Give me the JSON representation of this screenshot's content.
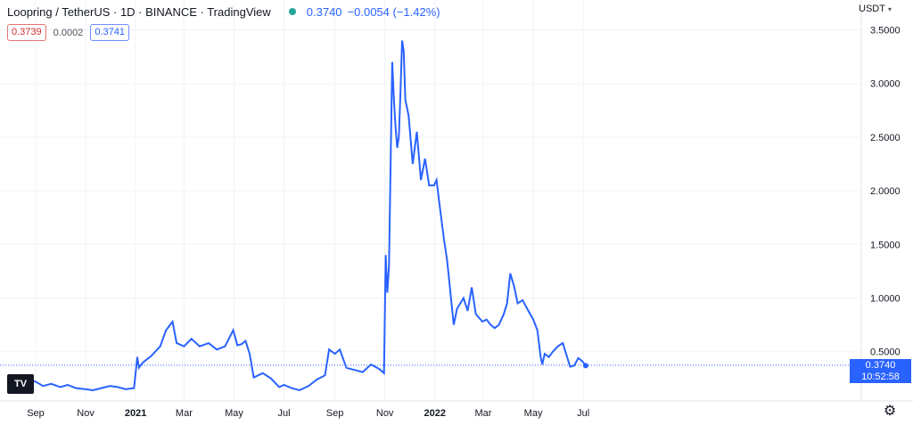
{
  "header": {
    "title": "Loopring / TetherUS · 1D · BINANCE · TradingView",
    "last_price": "0.3740",
    "change": "−0.0054 (−1.42%)",
    "status_color": "#26a69a"
  },
  "ohlc": {
    "bid": "0.3739",
    "spread": "0.0002",
    "ask": "0.3741"
  },
  "price_axis": {
    "unit_label": "USDT",
    "current_price": "0.3740",
    "countdown": "10:52:58"
  },
  "logo_text": "TV",
  "icons": {
    "settings": "gear-icon",
    "dropdown": "chevron-down-icon"
  },
  "colors": {
    "line": "#2962ff",
    "grid": "#f0f3fa",
    "axis_text": "#131722",
    "price_line": "#2962ff"
  },
  "chart_data": {
    "type": "line",
    "title": "Loopring / TetherUS · 1D · BINANCE",
    "xlabel": "",
    "ylabel": "",
    "ylim": [
      0,
      3.6
    ],
    "grid": true,
    "y_ticks": [
      "0.5000",
      "1.0000",
      "1.5000",
      "2.0000",
      "2.5000",
      "3.0000",
      "3.5000"
    ],
    "x_tick_labels": [
      {
        "date": "2020-09-01",
        "label": "Sep"
      },
      {
        "date": "2020-11-01",
        "label": "Nov"
      },
      {
        "date": "2021-01-01",
        "label": "2021"
      },
      {
        "date": "2021-03-01",
        "label": "Mar"
      },
      {
        "date": "2021-05-01",
        "label": "May"
      },
      {
        "date": "2021-07-01",
        "label": "Jul"
      },
      {
        "date": "2021-09-01",
        "label": "Sep"
      },
      {
        "date": "2021-11-01",
        "label": "Nov"
      },
      {
        "date": "2022-01-01",
        "label": "2022"
      },
      {
        "date": "2022-03-01",
        "label": "Mar"
      },
      {
        "date": "2022-05-01",
        "label": "May"
      },
      {
        "date": "2022-07-01",
        "label": "Jul"
      }
    ],
    "series": [
      {
        "values": [
          [
            "2020-08-01",
            0.15
          ],
          [
            "2020-08-10",
            0.22
          ],
          [
            "2020-08-20",
            0.25
          ],
          [
            "2020-09-01",
            0.22
          ],
          [
            "2020-09-10",
            0.18
          ],
          [
            "2020-09-20",
            0.2
          ],
          [
            "2020-10-01",
            0.17
          ],
          [
            "2020-10-10",
            0.19
          ],
          [
            "2020-10-20",
            0.16
          ],
          [
            "2020-10-31",
            0.15
          ],
          [
            "2020-11-10",
            0.14
          ],
          [
            "2020-11-20",
            0.16
          ],
          [
            "2020-12-01",
            0.18
          ],
          [
            "2020-12-10",
            0.17
          ],
          [
            "2020-12-20",
            0.15
          ],
          [
            "2020-12-30",
            0.16
          ],
          [
            "2021-01-03",
            0.45
          ],
          [
            "2021-01-05",
            0.35
          ],
          [
            "2021-01-10",
            0.4
          ],
          [
            "2021-01-20",
            0.46
          ],
          [
            "2021-01-31",
            0.55
          ],
          [
            "2021-02-07",
            0.7
          ],
          [
            "2021-02-15",
            0.78
          ],
          [
            "2021-02-20",
            0.58
          ],
          [
            "2021-03-01",
            0.55
          ],
          [
            "2021-03-10",
            0.62
          ],
          [
            "2021-03-20",
            0.55
          ],
          [
            "2021-03-31",
            0.58
          ],
          [
            "2021-04-10",
            0.52
          ],
          [
            "2021-04-20",
            0.55
          ],
          [
            "2021-04-30",
            0.7
          ],
          [
            "2021-05-05",
            0.56
          ],
          [
            "2021-05-10",
            0.57
          ],
          [
            "2021-05-15",
            0.6
          ],
          [
            "2021-05-20",
            0.48
          ],
          [
            "2021-05-25",
            0.26
          ],
          [
            "2021-06-05",
            0.3
          ],
          [
            "2021-06-15",
            0.25
          ],
          [
            "2021-06-25",
            0.17
          ],
          [
            "2021-07-01",
            0.19
          ],
          [
            "2021-07-10",
            0.16
          ],
          [
            "2021-07-20",
            0.14
          ],
          [
            "2021-07-31",
            0.18
          ],
          [
            "2021-08-10",
            0.24
          ],
          [
            "2021-08-20",
            0.28
          ],
          [
            "2021-08-25",
            0.52
          ],
          [
            "2021-09-01",
            0.48
          ],
          [
            "2021-09-07",
            0.52
          ],
          [
            "2021-09-15",
            0.35
          ],
          [
            "2021-09-25",
            0.33
          ],
          [
            "2021-10-05",
            0.31
          ],
          [
            "2021-10-15",
            0.38
          ],
          [
            "2021-10-25",
            0.34
          ],
          [
            "2021-10-31",
            0.3
          ],
          [
            "2021-11-02",
            1.4
          ],
          [
            "2021-11-04",
            1.05
          ],
          [
            "2021-11-06",
            1.3
          ],
          [
            "2021-11-10",
            3.2
          ],
          [
            "2021-11-12",
            2.85
          ],
          [
            "2021-11-14",
            2.6
          ],
          [
            "2021-11-16",
            2.4
          ],
          [
            "2021-11-18",
            2.5
          ],
          [
            "2021-11-20",
            2.9
          ],
          [
            "2021-11-22",
            3.4
          ],
          [
            "2021-11-24",
            3.3
          ],
          [
            "2021-11-26",
            2.85
          ],
          [
            "2021-11-30",
            2.7
          ],
          [
            "2021-12-05",
            2.25
          ],
          [
            "2021-12-10",
            2.55
          ],
          [
            "2021-12-15",
            2.1
          ],
          [
            "2021-12-20",
            2.3
          ],
          [
            "2021-12-25",
            2.05
          ],
          [
            "2021-12-31",
            2.05
          ],
          [
            "2022-01-03",
            2.1
          ],
          [
            "2022-01-07",
            1.85
          ],
          [
            "2022-01-12",
            1.55
          ],
          [
            "2022-01-16",
            1.35
          ],
          [
            "2022-01-20",
            1.05
          ],
          [
            "2022-01-24",
            0.75
          ],
          [
            "2022-01-28",
            0.9
          ],
          [
            "2022-02-05",
            1.0
          ],
          [
            "2022-02-10",
            0.88
          ],
          [
            "2022-02-15",
            1.1
          ],
          [
            "2022-02-20",
            0.85
          ],
          [
            "2022-02-28",
            0.78
          ],
          [
            "2022-03-05",
            0.8
          ],
          [
            "2022-03-10",
            0.75
          ],
          [
            "2022-03-15",
            0.72
          ],
          [
            "2022-03-20",
            0.75
          ],
          [
            "2022-03-26",
            0.85
          ],
          [
            "2022-03-30",
            0.95
          ],
          [
            "2022-04-03",
            1.23
          ],
          [
            "2022-04-08",
            1.1
          ],
          [
            "2022-04-12",
            0.95
          ],
          [
            "2022-04-18",
            0.98
          ],
          [
            "2022-04-25",
            0.88
          ],
          [
            "2022-05-01",
            0.8
          ],
          [
            "2022-05-06",
            0.7
          ],
          [
            "2022-05-10",
            0.45
          ],
          [
            "2022-05-12",
            0.38
          ],
          [
            "2022-05-15",
            0.48
          ],
          [
            "2022-05-20",
            0.45
          ],
          [
            "2022-05-25",
            0.5
          ],
          [
            "2022-05-31",
            0.55
          ],
          [
            "2022-06-06",
            0.58
          ],
          [
            "2022-06-10",
            0.48
          ],
          [
            "2022-06-15",
            0.36
          ],
          [
            "2022-06-20",
            0.37
          ],
          [
            "2022-06-25",
            0.44
          ],
          [
            "2022-06-30",
            0.41
          ],
          [
            "2022-07-04",
            0.37
          ]
        ]
      }
    ]
  }
}
